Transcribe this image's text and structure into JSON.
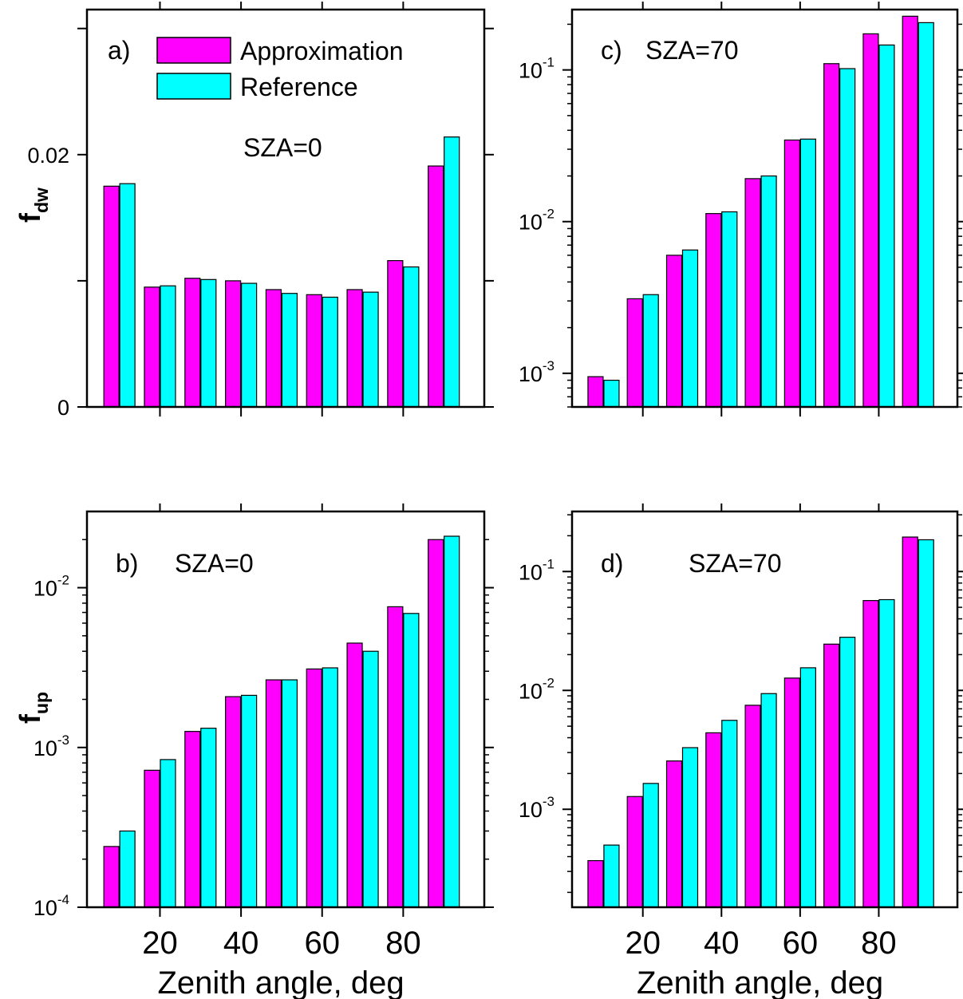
{
  "colors": {
    "approximation": "#ff00ff",
    "reference": "#00ffff",
    "edge": "#000000"
  },
  "legend": {
    "approximation": "Approximation",
    "reference": "Reference"
  },
  "chart_data": [
    {
      "type": "bar",
      "panel": "a)",
      "annotation": "SZA=0",
      "ylabel": "f",
      "ylabel_sub": "dw",
      "xlabel": "",
      "yscale": "linear",
      "xlim": [
        2,
        100
      ],
      "ylim": [
        0,
        0.0315
      ],
      "yticks": [
        0,
        0.02
      ],
      "ytick_labels": [
        "0",
        "0.02"
      ],
      "xticks": [
        20,
        40,
        60,
        80
      ],
      "xtick_labels": [],
      "legend": "top-left",
      "x": [
        10,
        20,
        30,
        40,
        50,
        60,
        70,
        80,
        90
      ],
      "series": [
        {
          "name": "Approximation",
          "values": [
            0.0175,
            0.0095,
            0.0102,
            0.01,
            0.0093,
            0.0089,
            0.0093,
            0.0116,
            0.0191
          ]
        },
        {
          "name": "Reference",
          "values": [
            0.0177,
            0.0096,
            0.0101,
            0.0098,
            0.009,
            0.0087,
            0.0091,
            0.0111,
            0.0214
          ]
        }
      ]
    },
    {
      "type": "bar",
      "panel": "c)",
      "annotation": "SZA=70",
      "ylabel": "",
      "xlabel": "",
      "yscale": "log",
      "xlim": [
        2,
        100
      ],
      "ylim": [
        0.0006,
        0.25
      ],
      "yticks": [
        0.001,
        0.01,
        0.1
      ],
      "ytick_labels": [
        {
          "base": "10",
          "exp": "-3"
        },
        {
          "base": "10",
          "exp": "-2"
        },
        {
          "base": "10",
          "exp": "-1"
        }
      ],
      "xticks": [
        20,
        40,
        60,
        80
      ],
      "xtick_labels": [],
      "x": [
        10,
        20,
        30,
        40,
        50,
        60,
        70,
        80,
        90
      ],
      "series": [
        {
          "name": "Approximation",
          "values": [
            0.00095,
            0.0031,
            0.006,
            0.0113,
            0.0192,
            0.0345,
            0.11,
            0.173,
            0.226
          ]
        },
        {
          "name": "Reference",
          "values": [
            0.0009,
            0.0033,
            0.0065,
            0.0116,
            0.02,
            0.035,
            0.102,
            0.146,
            0.205
          ]
        }
      ]
    },
    {
      "type": "bar",
      "panel": "b)",
      "annotation": "SZA=0",
      "ylabel": "f",
      "ylabel_sub": "up",
      "xlabel": "Zenith angle, deg",
      "yscale": "log",
      "xlim": [
        2,
        100
      ],
      "ylim": [
        0.0001,
        0.03
      ],
      "yticks": [
        0.0001,
        0.001,
        0.01
      ],
      "ytick_labels": [
        {
          "base": "10",
          "exp": "-4"
        },
        {
          "base": "10",
          "exp": "-3"
        },
        {
          "base": "10",
          "exp": "-2"
        }
      ],
      "xticks": [
        20,
        40,
        60,
        80
      ],
      "xtick_labels": [
        "20",
        "40",
        "60",
        "80"
      ],
      "x": [
        10,
        20,
        30,
        40,
        50,
        60,
        70,
        80,
        90
      ],
      "series": [
        {
          "name": "Approximation",
          "values": [
            0.00024,
            0.00072,
            0.00126,
            0.00208,
            0.00265,
            0.0031,
            0.0045,
            0.0076,
            0.02
          ]
        },
        {
          "name": "Reference",
          "values": [
            0.0003,
            0.00084,
            0.00132,
            0.00212,
            0.00265,
            0.00315,
            0.004,
            0.0069,
            0.021
          ]
        }
      ]
    },
    {
      "type": "bar",
      "panel": "d)",
      "annotation": "SZA=70",
      "ylabel": "",
      "xlabel": "Zenith angle, deg",
      "yscale": "log",
      "xlim": [
        2,
        100
      ],
      "ylim": [
        0.00015,
        0.32
      ],
      "yticks": [
        0.001,
        0.01,
        0.1
      ],
      "ytick_labels": [
        {
          "base": "10",
          "exp": "-3"
        },
        {
          "base": "10",
          "exp": "-2"
        },
        {
          "base": "10",
          "exp": "-1"
        }
      ],
      "xticks": [
        20,
        40,
        60,
        80
      ],
      "xtick_labels": [
        "20",
        "40",
        "60",
        "80"
      ],
      "x": [
        10,
        20,
        30,
        40,
        50,
        60,
        70,
        80,
        90
      ],
      "series": [
        {
          "name": "Approximation",
          "values": [
            0.00037,
            0.00128,
            0.00255,
            0.0044,
            0.0075,
            0.0127,
            0.0245,
            0.057,
            0.195
          ]
        },
        {
          "name": "Reference",
          "values": [
            0.0005,
            0.00165,
            0.0033,
            0.0056,
            0.0094,
            0.0155,
            0.028,
            0.058,
            0.185
          ]
        }
      ]
    }
  ]
}
